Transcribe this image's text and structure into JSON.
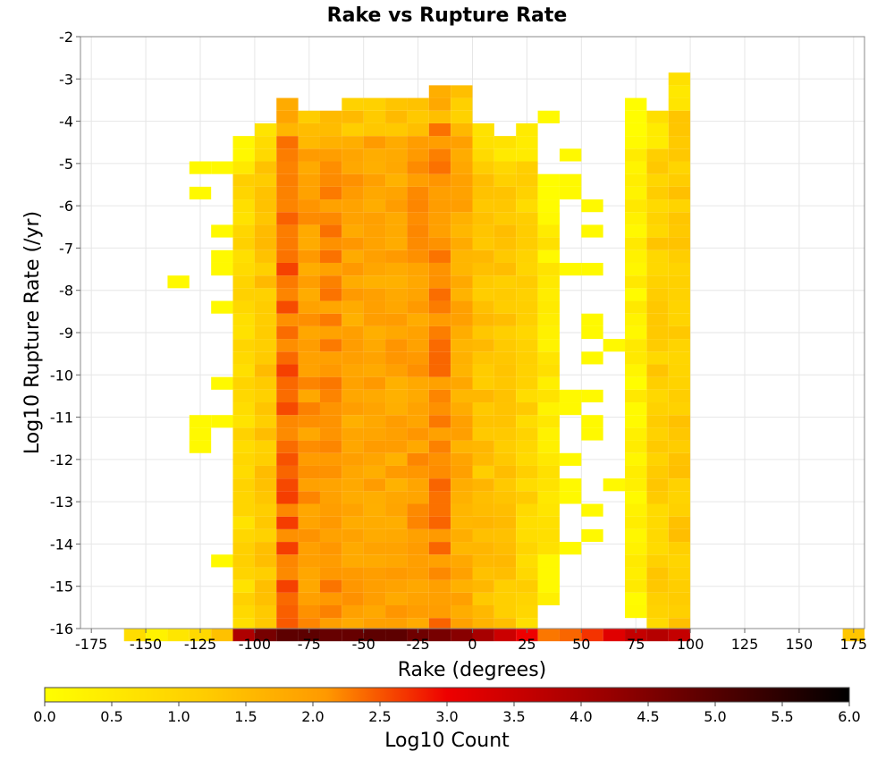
{
  "chart_data": {
    "type": "heatmap",
    "title": "Rake vs Rupture Rate",
    "xlabel": "Rake (degrees)",
    "ylabel": "Log10 Rupture Rate (/yr)",
    "colorbar_label": "Log10 Count",
    "xlim": [
      -180,
      180
    ],
    "ylim": [
      -16,
      -2
    ],
    "x_ticks": [
      -175,
      -150,
      -125,
      -100,
      -75,
      -50,
      -25,
      0,
      25,
      50,
      75,
      100,
      125,
      150,
      175
    ],
    "y_ticks": [
      -2,
      -3,
      -4,
      -5,
      -6,
      -7,
      -8,
      -9,
      -10,
      -11,
      -12,
      -13,
      -14,
      -15,
      -16
    ],
    "colorbar_ticks": [
      0.0,
      0.5,
      1.0,
      1.5,
      2.0,
      2.5,
      3.0,
      3.5,
      4.0,
      4.5,
      5.0,
      5.5,
      6.0
    ],
    "color_range": [
      0,
      6
    ],
    "grid": true,
    "bin_width_deg": 10,
    "bin_height_log": 0.3
  }
}
